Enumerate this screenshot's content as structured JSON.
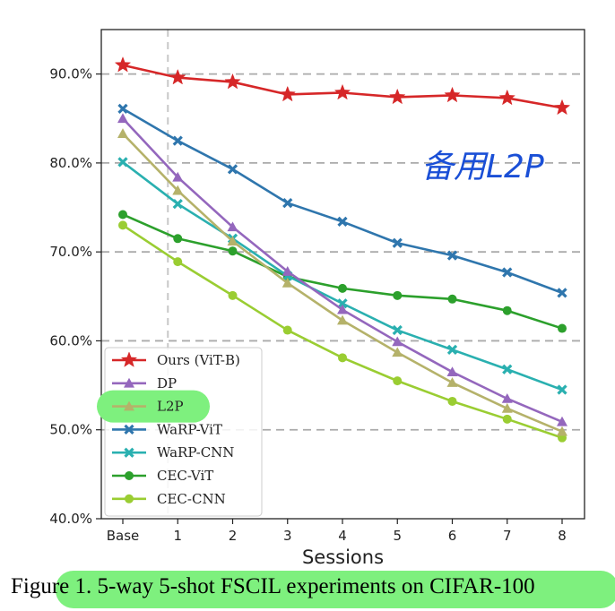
{
  "chart_data": {
    "type": "line",
    "xlabel": "Sessions",
    "ylabel": "",
    "categories": [
      "Base",
      "1",
      "2",
      "3",
      "4",
      "5",
      "6",
      "7",
      "8"
    ],
    "ylim": [
      40,
      95
    ],
    "yticks": [
      "40.0%",
      "50.0%",
      "60.0%",
      "70.0%",
      "80.0%",
      "90.0%"
    ],
    "ytick_values": [
      40,
      50,
      60,
      70,
      80,
      90
    ],
    "grid": "horizontal dashed, y only",
    "legend_position": "lower-left",
    "series": [
      {
        "name": "Ours (ViT-B)",
        "color": "#d62728",
        "marker": "star",
        "values": [
          91.0,
          89.6,
          89.1,
          87.7,
          87.9,
          87.4,
          87.6,
          87.3,
          86.2
        ]
      },
      {
        "name": "DP",
        "color": "#9467bd",
        "marker": "triangle",
        "values": [
          85.0,
          78.4,
          72.8,
          67.8,
          63.5,
          59.9,
          56.5,
          53.5,
          50.9
        ]
      },
      {
        "name": "L2P",
        "color": "#b5b26a",
        "marker": "triangle",
        "values": [
          83.3,
          76.9,
          71.2,
          66.5,
          62.3,
          58.7,
          55.3,
          52.4,
          49.8
        ]
      },
      {
        "name": "WaRP-ViT",
        "color": "#2f76ad",
        "marker": "x",
        "values": [
          86.1,
          82.5,
          79.3,
          75.5,
          73.4,
          71.0,
          69.6,
          67.7,
          65.4
        ]
      },
      {
        "name": "WaRP-CNN",
        "color": "#2ab0b0",
        "marker": "x",
        "values": [
          80.1,
          75.4,
          71.5,
          67.3,
          64.2,
          61.2,
          59.0,
          56.8,
          54.5
        ]
      },
      {
        "name": "CEC-ViT",
        "color": "#2ca02c",
        "marker": "circle",
        "values": [
          74.2,
          71.5,
          70.1,
          67.2,
          65.9,
          65.1,
          64.7,
          63.4,
          61.4
        ]
      },
      {
        "name": "CEC-CNN",
        "color": "#9acd32",
        "marker": "circle",
        "values": [
          73.0,
          68.9,
          65.1,
          61.2,
          58.1,
          55.5,
          53.2,
          51.2,
          49.1
        ]
      }
    ],
    "highlighted_legend_entry": "L2P"
  },
  "annotation": {
    "handwritten_note": "备用L2P",
    "color": "#1a4fd6"
  },
  "caption": {
    "text": "Figure 1. 5-way 5-shot FSCIL experiments on CIFAR-100",
    "highlight_color": "#7ef07e"
  },
  "colors": {
    "highlight": "#7ef07e",
    "grid": "#aaaaaa",
    "vline": "#c8c8c8"
  }
}
